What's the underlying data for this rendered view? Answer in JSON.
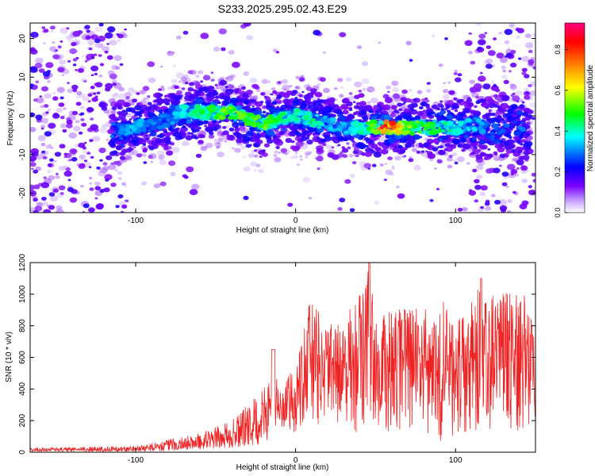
{
  "title": "S233.2025.295.02.43.E29",
  "chart_data": [
    {
      "type": "heatmap",
      "name": "spectrogram",
      "xlabel": "Height of straight line (km)",
      "ylabel": "Frequency (Hz)",
      "xlim": [
        -166,
        150
      ],
      "ylim": [
        -25,
        24
      ],
      "xticks": [
        -100,
        0,
        100
      ],
      "yticks": [
        -20,
        -10,
        0,
        10,
        20
      ],
      "grid": false,
      "colorbar": {
        "label": "Normalized spectral amplitude",
        "range": [
          0.0,
          0.93
        ],
        "ticks": [
          0.0,
          0.2,
          0.4,
          0.6,
          0.8
        ],
        "colormap": [
          "#ffffff",
          "#7b00ff",
          "#0000ff",
          "#00ffff",
          "#00ff00",
          "#ffff00",
          "#ff8000",
          "#ff0000",
          "#ff0080"
        ]
      },
      "ridge": {
        "x": [
          -110,
          -100,
          -90,
          -80,
          -70,
          -60,
          -50,
          -40,
          -30,
          -20,
          -10,
          0,
          10,
          20,
          30,
          40,
          50,
          60,
          70,
          80,
          90,
          100,
          110,
          120
        ],
        "freq": [
          -4,
          -3,
          -2,
          -1,
          1,
          1,
          1,
          1,
          -1,
          -2,
          -1,
          0,
          -1,
          -2,
          -3,
          -3,
          -3,
          -3,
          -3,
          -3,
          -3,
          -3,
          -2,
          -3
        ],
        "amplitude": [
          0.3,
          0.35,
          0.3,
          0.3,
          0.4,
          0.45,
          0.5,
          0.55,
          0.5,
          0.55,
          0.45,
          0.4,
          0.45,
          0.35,
          0.35,
          0.4,
          0.55,
          0.8,
          0.55,
          0.5,
          0.45,
          0.4,
          0.35,
          0.3
        ]
      }
    },
    {
      "type": "line",
      "name": "snr",
      "xlabel": "Height of straight line (km)",
      "ylabel": "SNR (10 * v/v)",
      "xlim": [
        -166,
        150
      ],
      "ylim": [
        0,
        1200
      ],
      "xticks": [
        -100,
        0,
        100
      ],
      "yticks": [
        0,
        200,
        400,
        600,
        800,
        1000,
        1200
      ],
      "color": "#ee2222",
      "grid": false,
      "envelope": {
        "x": [
          -166,
          -140,
          -120,
          -100,
          -80,
          -60,
          -40,
          -20,
          -14,
          -10,
          0,
          5,
          10,
          20,
          30,
          40,
          46,
          50,
          60,
          70,
          80,
          90,
          100,
          110,
          116,
          120,
          130,
          140,
          150
        ],
        "low": [
          5,
          5,
          5,
          5,
          10,
          20,
          30,
          50,
          80,
          100,
          100,
          150,
          200,
          150,
          150,
          100,
          200,
          150,
          100,
          150,
          100,
          50,
          100,
          100,
          150,
          100,
          150,
          100,
          150
        ],
        "high": [
          30,
          30,
          35,
          40,
          80,
          120,
          200,
          400,
          660,
          400,
          550,
          900,
          960,
          800,
          850,
          1000,
          1200,
          850,
          900,
          950,
          900,
          1000,
          850,
          950,
          1100,
          1000,
          1000,
          1050,
          1000
        ]
      }
    }
  ]
}
